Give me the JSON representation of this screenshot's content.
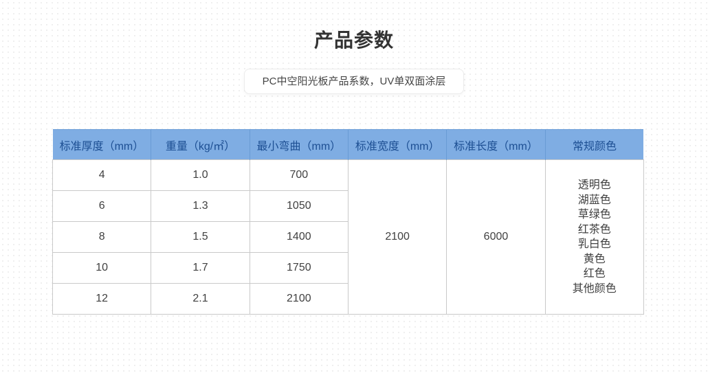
{
  "page": {
    "title": "产品参数",
    "subtitle": "PC中空阳光板产品系数，UV单双面涂层"
  },
  "table": {
    "headers": [
      "标准厚度（mm）",
      "重量（kg/㎡）",
      "最小弯曲（mm）",
      "标准宽度（mm）",
      "标准长度（mm）",
      "常规颜色"
    ],
    "rows": [
      [
        "4",
        "1.0",
        "700"
      ],
      [
        "6",
        "1.3",
        "1050"
      ],
      [
        "8",
        "1.5",
        "1400"
      ],
      [
        "10",
        "1.7",
        "1750"
      ],
      [
        "12",
        "2.1",
        "2100"
      ]
    ],
    "standard_width": "2100",
    "standard_length": "6000",
    "colors": [
      "透明色",
      "湖蓝色",
      "草绿色",
      "红茶色",
      "乳白色",
      "黄色",
      "红色",
      "其他颜色"
    ]
  },
  "theme": {
    "header_bg": "#7fade3",
    "header_text": "#1d4f93",
    "body_border": "#c9c9c9",
    "body_text": "#404040",
    "page_bg": "#ffffff",
    "dot_pattern": "#efefef"
  }
}
